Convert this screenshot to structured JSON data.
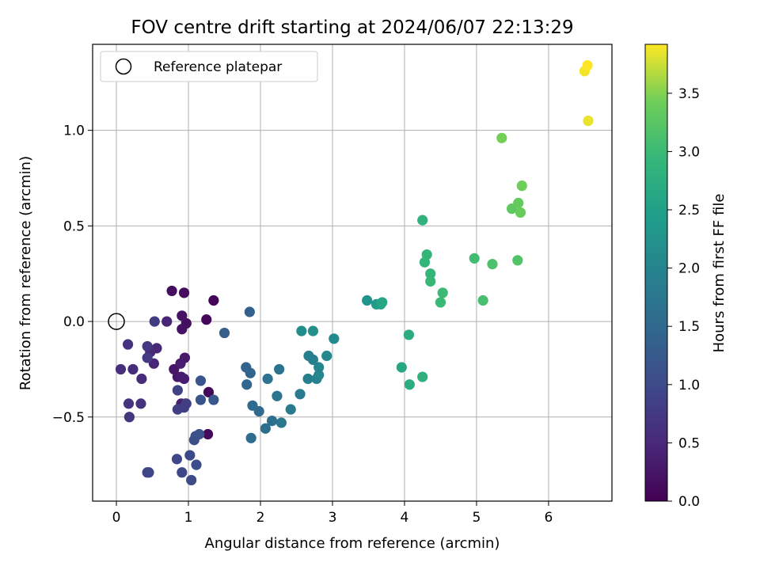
{
  "chart_data": {
    "type": "scatter",
    "title": "FOV centre drift starting at 2024/06/07 22:13:29",
    "xlabel": "Angular distance from reference (arcmin)",
    "ylabel": "Rotation from reference (arcmin)",
    "xlim": [
      -0.33,
      6.88
    ],
    "ylim": [
      -0.94,
      1.45
    ],
    "xticks": [
      0,
      1,
      2,
      3,
      4,
      5,
      6
    ],
    "yticks": [
      -0.5,
      0.0,
      0.5,
      1.0
    ],
    "xtick_labels": [
      "0",
      "1",
      "2",
      "3",
      "4",
      "5",
      "6"
    ],
    "ytick_labels": [
      "−0.5",
      "0.0",
      "0.5",
      "1.0"
    ],
    "grid": true,
    "legend": {
      "placement": "upper-left",
      "label": "Reference platepar",
      "marker": "open-circle"
    },
    "reference_point": {
      "x": 0.0,
      "y": 0.0
    },
    "colorbar": {
      "label": "Hours from first FF file",
      "colormap": "viridis",
      "range": [
        0,
        3.92
      ],
      "ticks": [
        0.0,
        0.5,
        1.0,
        1.5,
        2.0,
        2.5,
        3.0,
        3.5
      ],
      "tick_labels": [
        "0.0",
        "0.5",
        "1.0",
        "1.5",
        "2.0",
        "2.5",
        "3.0",
        "3.5"
      ]
    },
    "points": [
      {
        "x": 1.35,
        "y": 0.11,
        "t": 0.05
      },
      {
        "x": 1.25,
        "y": 0.01,
        "t": 0.07
      },
      {
        "x": 1.28,
        "y": -0.37,
        "t": 0.08
      },
      {
        "x": 1.27,
        "y": -0.59,
        "t": 0.1
      },
      {
        "x": 0.94,
        "y": 0.15,
        "t": 0.12
      },
      {
        "x": 0.77,
        "y": 0.16,
        "t": 0.15
      },
      {
        "x": 0.97,
        "y": -0.01,
        "t": 0.17
      },
      {
        "x": 0.91,
        "y": -0.04,
        "t": 0.2
      },
      {
        "x": 0.91,
        "y": 0.03,
        "t": 0.22
      },
      {
        "x": 0.8,
        "y": -0.25,
        "t": 0.25
      },
      {
        "x": 0.85,
        "y": -0.29,
        "t": 0.27
      },
      {
        "x": 0.9,
        "y": -0.29,
        "t": 0.3
      },
      {
        "x": 0.95,
        "y": -0.19,
        "t": 0.32
      },
      {
        "x": 0.89,
        "y": -0.22,
        "t": 0.35
      },
      {
        "x": 0.94,
        "y": -0.3,
        "t": 0.37
      },
      {
        "x": 0.9,
        "y": -0.43,
        "t": 0.4
      },
      {
        "x": 0.96,
        "y": -0.43,
        "t": 0.42
      },
      {
        "x": 0.7,
        "y": 0.0,
        "t": 0.45
      },
      {
        "x": 0.52,
        "y": -0.22,
        "t": 0.48
      },
      {
        "x": 0.56,
        "y": -0.14,
        "t": 0.5
      },
      {
        "x": 0.47,
        "y": -0.16,
        "t": 0.52
      },
      {
        "x": 0.35,
        "y": -0.3,
        "t": 0.55
      },
      {
        "x": 0.23,
        "y": -0.25,
        "t": 0.57
      },
      {
        "x": 0.06,
        "y": -0.25,
        "t": 0.6
      },
      {
        "x": 0.16,
        "y": -0.12,
        "t": 0.62
      },
      {
        "x": 0.17,
        "y": -0.43,
        "t": 0.65
      },
      {
        "x": 0.34,
        "y": -0.43,
        "t": 0.67
      },
      {
        "x": 0.18,
        "y": -0.5,
        "t": 0.7
      },
      {
        "x": 0.43,
        "y": -0.13,
        "t": 0.73
      },
      {
        "x": 0.43,
        "y": -0.19,
        "t": 0.75
      },
      {
        "x": 0.53,
        "y": 0.0,
        "t": 0.77
      },
      {
        "x": 0.94,
        "y": -0.45,
        "t": 0.8
      },
      {
        "x": 0.97,
        "y": -0.43,
        "t": 0.82
      },
      {
        "x": 0.85,
        "y": -0.46,
        "t": 0.85
      },
      {
        "x": 0.85,
        "y": -0.36,
        "t": 0.87
      },
      {
        "x": 0.43,
        "y": -0.79,
        "t": 0.9
      },
      {
        "x": 0.45,
        "y": -0.79,
        "t": 0.92
      },
      {
        "x": 0.84,
        "y": -0.72,
        "t": 0.95
      },
      {
        "x": 0.91,
        "y": -0.79,
        "t": 0.97
      },
      {
        "x": 1.02,
        "y": -0.7,
        "t": 1.0
      },
      {
        "x": 1.04,
        "y": -0.83,
        "t": 1.02
      },
      {
        "x": 1.11,
        "y": -0.75,
        "t": 1.05
      },
      {
        "x": 1.08,
        "y": -0.62,
        "t": 1.07
      },
      {
        "x": 1.1,
        "y": -0.6,
        "t": 1.1
      },
      {
        "x": 1.15,
        "y": -0.59,
        "t": 1.12
      },
      {
        "x": 1.17,
        "y": -0.41,
        "t": 1.15
      },
      {
        "x": 1.17,
        "y": -0.31,
        "t": 1.17
      },
      {
        "x": 1.35,
        "y": -0.41,
        "t": 1.2
      },
      {
        "x": 1.5,
        "y": -0.06,
        "t": 1.3
      },
      {
        "x": 1.85,
        "y": 0.05,
        "t": 1.35
      },
      {
        "x": 1.8,
        "y": -0.24,
        "t": 1.4
      },
      {
        "x": 1.86,
        "y": -0.27,
        "t": 1.43
      },
      {
        "x": 1.81,
        "y": -0.33,
        "t": 1.46
      },
      {
        "x": 1.89,
        "y": -0.44,
        "t": 1.5
      },
      {
        "x": 1.98,
        "y": -0.47,
        "t": 1.53
      },
      {
        "x": 1.87,
        "y": -0.61,
        "t": 1.56
      },
      {
        "x": 2.07,
        "y": -0.56,
        "t": 1.6
      },
      {
        "x": 2.16,
        "y": -0.52,
        "t": 1.63
      },
      {
        "x": 2.1,
        "y": -0.3,
        "t": 1.66
      },
      {
        "x": 2.26,
        "y": -0.25,
        "t": 1.7
      },
      {
        "x": 2.23,
        "y": -0.39,
        "t": 1.73
      },
      {
        "x": 2.29,
        "y": -0.53,
        "t": 1.76
      },
      {
        "x": 2.42,
        "y": -0.46,
        "t": 1.8
      },
      {
        "x": 2.55,
        "y": -0.38,
        "t": 1.83
      },
      {
        "x": 2.66,
        "y": -0.3,
        "t": 1.86
      },
      {
        "x": 2.67,
        "y": -0.18,
        "t": 1.9
      },
      {
        "x": 2.73,
        "y": -0.2,
        "t": 1.93
      },
      {
        "x": 2.78,
        "y": -0.3,
        "t": 1.96
      },
      {
        "x": 2.81,
        "y": -0.24,
        "t": 2.0
      },
      {
        "x": 2.81,
        "y": -0.28,
        "t": 2.03
      },
      {
        "x": 2.92,
        "y": -0.18,
        "t": 2.06
      },
      {
        "x": 3.02,
        "y": -0.09,
        "t": 2.1
      },
      {
        "x": 2.57,
        "y": -0.05,
        "t": 2.15
      },
      {
        "x": 2.73,
        "y": -0.05,
        "t": 2.2
      },
      {
        "x": 3.48,
        "y": 0.11,
        "t": 2.3
      },
      {
        "x": 3.61,
        "y": 0.09,
        "t": 2.4
      },
      {
        "x": 3.67,
        "y": 0.09,
        "t": 2.5
      },
      {
        "x": 3.69,
        "y": 0.1,
        "t": 2.6
      },
      {
        "x": 3.96,
        "y": -0.24,
        "t": 2.65
      },
      {
        "x": 4.06,
        "y": -0.07,
        "t": 2.7
      },
      {
        "x": 4.07,
        "y": -0.33,
        "t": 2.75
      },
      {
        "x": 4.25,
        "y": -0.29,
        "t": 2.8
      },
      {
        "x": 4.25,
        "y": 0.53,
        "t": 2.85
      },
      {
        "x": 4.28,
        "y": 0.31,
        "t": 2.88
      },
      {
        "x": 4.31,
        "y": 0.35,
        "t": 2.9
      },
      {
        "x": 4.36,
        "y": 0.25,
        "t": 2.93
      },
      {
        "x": 4.36,
        "y": 0.21,
        "t": 2.95
      },
      {
        "x": 4.5,
        "y": 0.1,
        "t": 2.98
      },
      {
        "x": 4.53,
        "y": 0.15,
        "t": 3.0
      },
      {
        "x": 4.97,
        "y": 0.33,
        "t": 3.05
      },
      {
        "x": 5.09,
        "y": 0.11,
        "t": 3.1
      },
      {
        "x": 5.22,
        "y": 0.3,
        "t": 3.15
      },
      {
        "x": 5.57,
        "y": 0.32,
        "t": 3.2
      },
      {
        "x": 5.49,
        "y": 0.59,
        "t": 3.3
      },
      {
        "x": 5.58,
        "y": 0.62,
        "t": 3.35
      },
      {
        "x": 5.61,
        "y": 0.57,
        "t": 3.38
      },
      {
        "x": 5.63,
        "y": 0.71,
        "t": 3.42
      },
      {
        "x": 5.35,
        "y": 0.96,
        "t": 3.45
      },
      {
        "x": 6.55,
        "y": 1.05,
        "t": 3.85
      },
      {
        "x": 6.5,
        "y": 1.31,
        "t": 3.88
      },
      {
        "x": 6.54,
        "y": 1.34,
        "t": 3.92
      }
    ]
  }
}
